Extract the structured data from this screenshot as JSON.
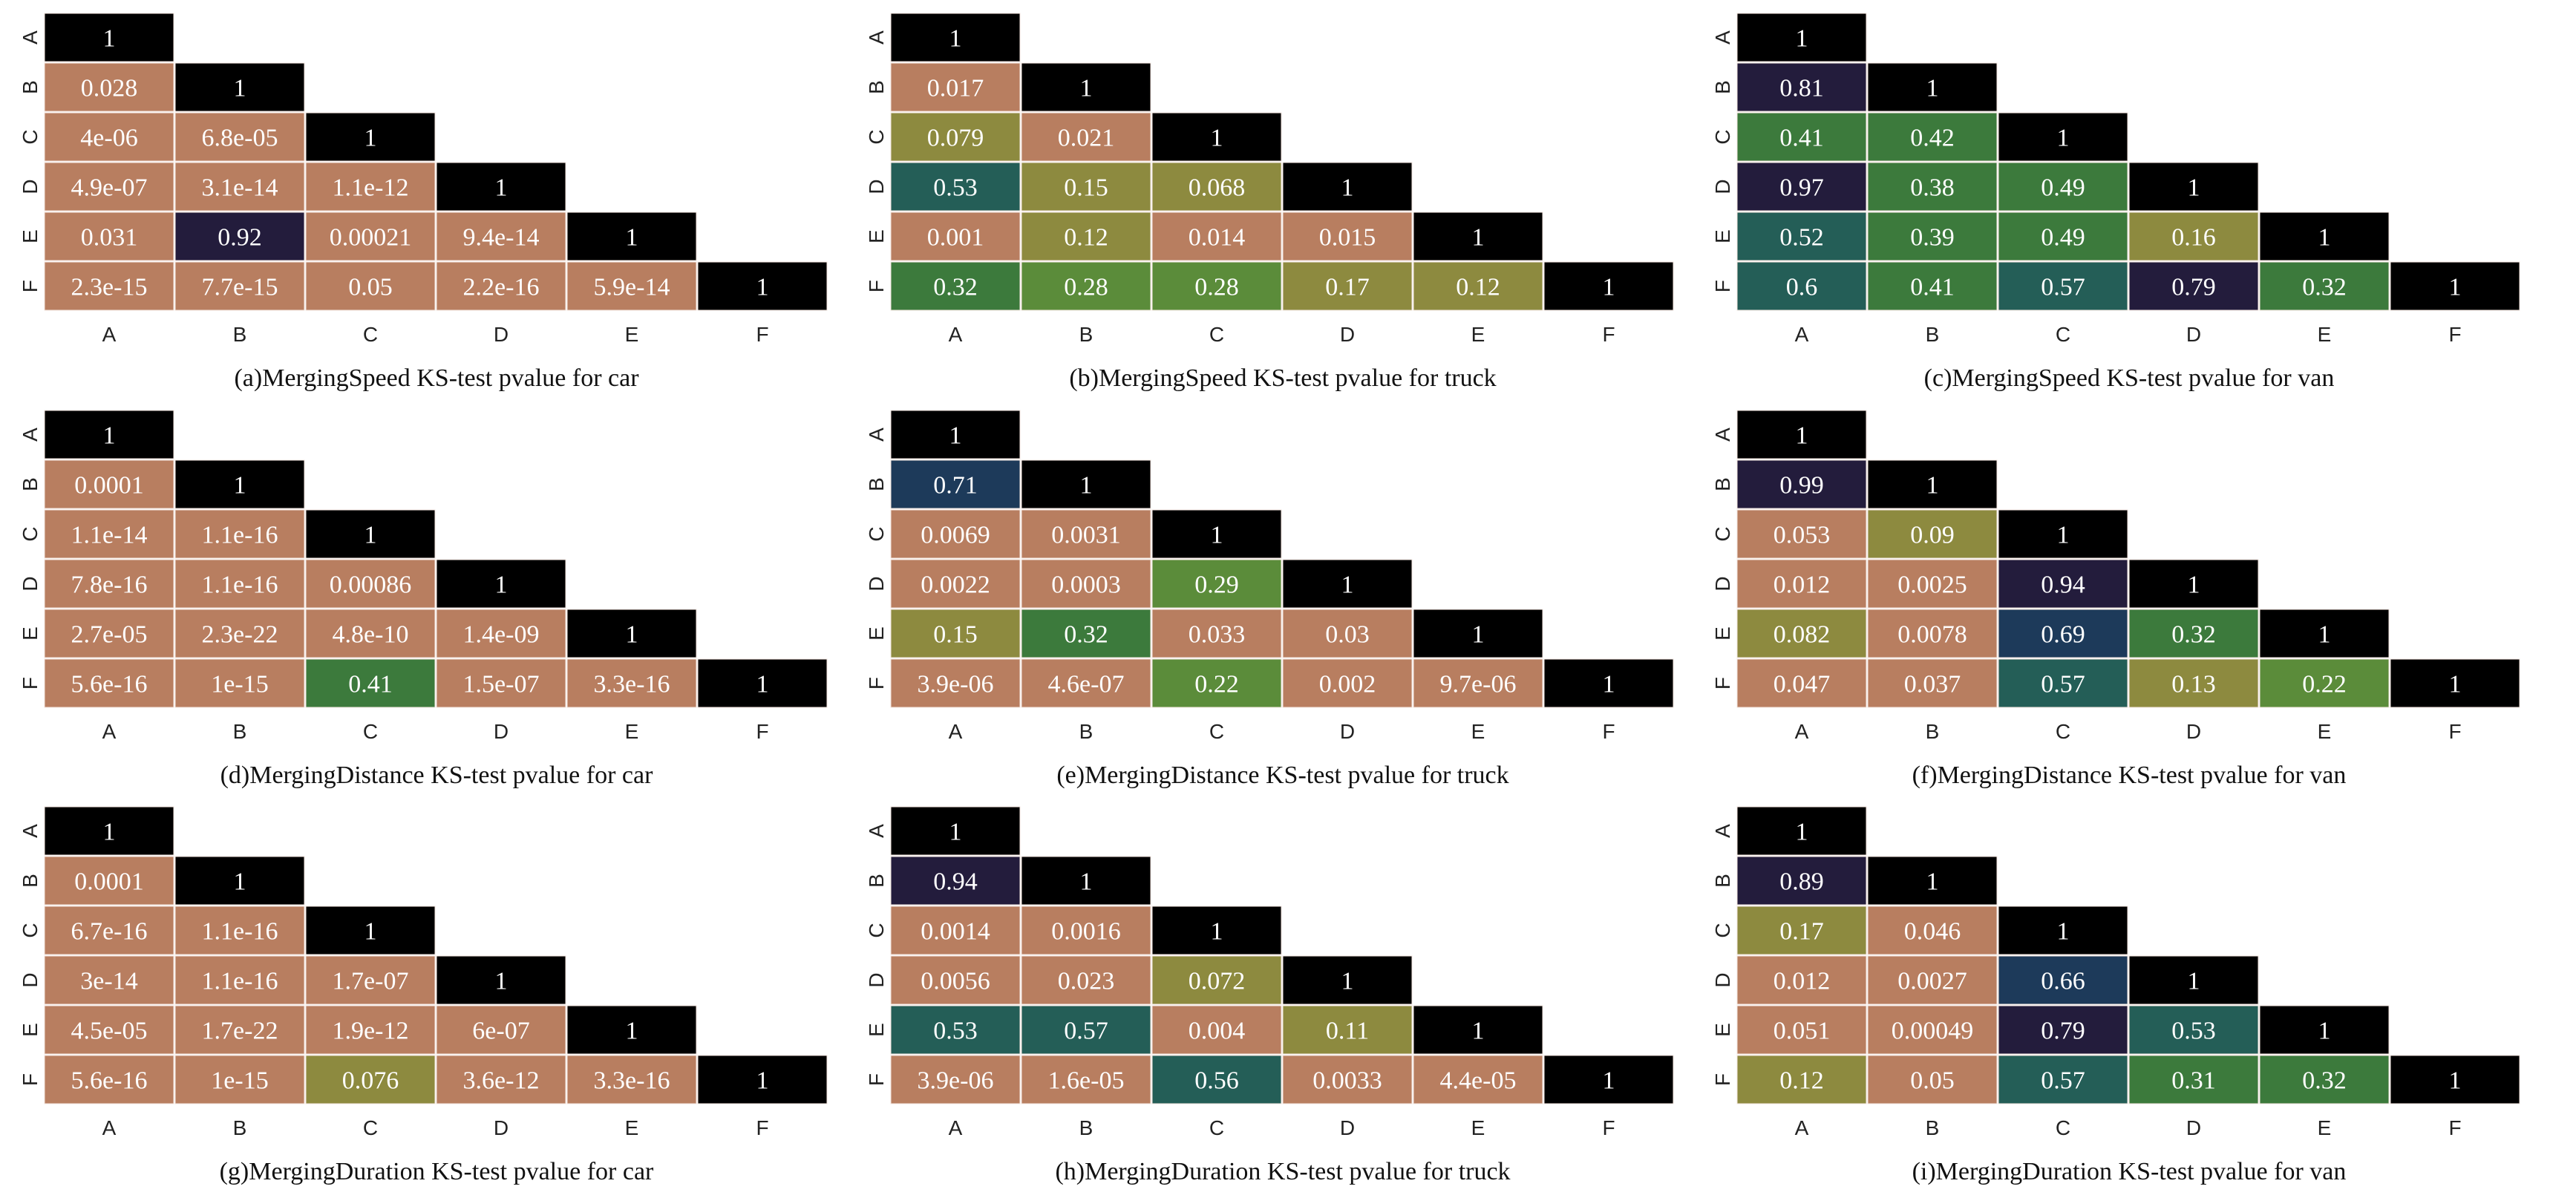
{
  "figure": {
    "background": "#ffffff"
  },
  "palette": {
    "very_low": "#b87e60",
    "low": "#8d8a3f",
    "mid_low": "#5b8c3a",
    "mid": "#3c7a3c",
    "mid_high": "#245e57",
    "high": "#1d3a5a",
    "very_high": "#231c3c",
    "one": "#000000",
    "cell_border": "#f3e6df"
  },
  "chart_data": [
    {
      "type": "heatmap",
      "title": "(a)MergingSpeed KS-test pvalue for car",
      "x_categories": [
        "A",
        "B",
        "C",
        "D",
        "E",
        "F"
      ],
      "y_categories": [
        "A",
        "B",
        "C",
        "D",
        "E",
        "F"
      ],
      "rows": [
        [
          "1"
        ],
        [
          "0.028",
          "1"
        ],
        [
          "4e-06",
          "6.8e-05",
          "1"
        ],
        [
          "4.9e-07",
          "3.1e-14",
          "1.1e-12",
          "1"
        ],
        [
          "0.031",
          "0.92",
          "0.00021",
          "9.4e-14",
          "1"
        ],
        [
          "2.3e-15",
          "7.7e-15",
          "0.05",
          "2.2e-16",
          "5.9e-14",
          "1"
        ]
      ]
    },
    {
      "type": "heatmap",
      "title": "(b)MergingSpeed KS-test pvalue for truck",
      "x_categories": [
        "A",
        "B",
        "C",
        "D",
        "E",
        "F"
      ],
      "y_categories": [
        "A",
        "B",
        "C",
        "D",
        "E",
        "F"
      ],
      "rows": [
        [
          "1"
        ],
        [
          "0.017",
          "1"
        ],
        [
          "0.079",
          "0.021",
          "1"
        ],
        [
          "0.53",
          "0.15",
          "0.068",
          "1"
        ],
        [
          "0.001",
          "0.12",
          "0.014",
          "0.015",
          "1"
        ],
        [
          "0.32",
          "0.28",
          "0.28",
          "0.17",
          "0.12",
          "1"
        ]
      ]
    },
    {
      "type": "heatmap",
      "title": "(c)MergingSpeed KS-test pvalue for van",
      "x_categories": [
        "A",
        "B",
        "C",
        "D",
        "E",
        "F"
      ],
      "y_categories": [
        "A",
        "B",
        "C",
        "D",
        "E",
        "F"
      ],
      "rows": [
        [
          "1"
        ],
        [
          "0.81",
          "1"
        ],
        [
          "0.41",
          "0.42",
          "1"
        ],
        [
          "0.97",
          "0.38",
          "0.49",
          "1"
        ],
        [
          "0.52",
          "0.39",
          "0.49",
          "0.16",
          "1"
        ],
        [
          "0.6",
          "0.41",
          "0.57",
          "0.79",
          "0.32",
          "1"
        ]
      ]
    },
    {
      "type": "heatmap",
      "title": "(d)MergingDistance KS-test pvalue for car",
      "x_categories": [
        "A",
        "B",
        "C",
        "D",
        "E",
        "F"
      ],
      "y_categories": [
        "A",
        "B",
        "C",
        "D",
        "E",
        "F"
      ],
      "rows": [
        [
          "1"
        ],
        [
          "0.0001",
          "1"
        ],
        [
          "1.1e-14",
          "1.1e-16",
          "1"
        ],
        [
          "7.8e-16",
          "1.1e-16",
          "0.00086",
          "1"
        ],
        [
          "2.7e-05",
          "2.3e-22",
          "4.8e-10",
          "1.4e-09",
          "1"
        ],
        [
          "5.6e-16",
          "1e-15",
          "0.41",
          "1.5e-07",
          "3.3e-16",
          "1"
        ]
      ]
    },
    {
      "type": "heatmap",
      "title": "(e)MergingDistance KS-test pvalue for truck",
      "x_categories": [
        "A",
        "B",
        "C",
        "D",
        "E",
        "F"
      ],
      "y_categories": [
        "A",
        "B",
        "C",
        "D",
        "E",
        "F"
      ],
      "rows": [
        [
          "1"
        ],
        [
          "0.71",
          "1"
        ],
        [
          "0.0069",
          "0.0031",
          "1"
        ],
        [
          "0.0022",
          "0.0003",
          "0.29",
          "1"
        ],
        [
          "0.15",
          "0.32",
          "0.033",
          "0.03",
          "1"
        ],
        [
          "3.9e-06",
          "4.6e-07",
          "0.22",
          "0.002",
          "9.7e-06",
          "1"
        ]
      ]
    },
    {
      "type": "heatmap",
      "title": "(f)MergingDistance KS-test pvalue for van",
      "x_categories": [
        "A",
        "B",
        "C",
        "D",
        "E",
        "F"
      ],
      "y_categories": [
        "A",
        "B",
        "C",
        "D",
        "E",
        "F"
      ],
      "rows": [
        [
          "1"
        ],
        [
          "0.99",
          "1"
        ],
        [
          "0.053",
          "0.09",
          "1"
        ],
        [
          "0.012",
          "0.0025",
          "0.94",
          "1"
        ],
        [
          "0.082",
          "0.0078",
          "0.69",
          "0.32",
          "1"
        ],
        [
          "0.047",
          "0.037",
          "0.57",
          "0.13",
          "0.22",
          "1"
        ]
      ]
    },
    {
      "type": "heatmap",
      "title": "(g)MergingDuration KS-test pvalue for car",
      "x_categories": [
        "A",
        "B",
        "C",
        "D",
        "E",
        "F"
      ],
      "y_categories": [
        "A",
        "B",
        "C",
        "D",
        "E",
        "F"
      ],
      "rows": [
        [
          "1"
        ],
        [
          "0.0001",
          "1"
        ],
        [
          "6.7e-16",
          "1.1e-16",
          "1"
        ],
        [
          "3e-14",
          "1.1e-16",
          "1.7e-07",
          "1"
        ],
        [
          "4.5e-05",
          "1.7e-22",
          "1.9e-12",
          "6e-07",
          "1"
        ],
        [
          "5.6e-16",
          "1e-15",
          "0.076",
          "3.6e-12",
          "3.3e-16",
          "1"
        ]
      ]
    },
    {
      "type": "heatmap",
      "title": "(h)MergingDuration KS-test pvalue for truck",
      "x_categories": [
        "A",
        "B",
        "C",
        "D",
        "E",
        "F"
      ],
      "y_categories": [
        "A",
        "B",
        "C",
        "D",
        "E",
        "F"
      ],
      "rows": [
        [
          "1"
        ],
        [
          "0.94",
          "1"
        ],
        [
          "0.0014",
          "0.0016",
          "1"
        ],
        [
          "0.0056",
          "0.023",
          "0.072",
          "1"
        ],
        [
          "0.53",
          "0.57",
          "0.004",
          "0.11",
          "1"
        ],
        [
          "3.9e-06",
          "1.6e-05",
          "0.56",
          "0.0033",
          "4.4e-05",
          "1"
        ]
      ]
    },
    {
      "type": "heatmap",
      "title": "(i)MergingDuration KS-test pvalue for van",
      "x_categories": [
        "A",
        "B",
        "C",
        "D",
        "E",
        "F"
      ],
      "y_categories": [
        "A",
        "B",
        "C",
        "D",
        "E",
        "F"
      ],
      "rows": [
        [
          "1"
        ],
        [
          "0.89",
          "1"
        ],
        [
          "0.17",
          "0.046",
          "1"
        ],
        [
          "0.012",
          "0.0027",
          "0.66",
          "1"
        ],
        [
          "0.051",
          "0.00049",
          "0.79",
          "0.53",
          "1"
        ],
        [
          "0.12",
          "0.05",
          "0.57",
          "0.31",
          "0.32",
          "1"
        ]
      ]
    }
  ]
}
